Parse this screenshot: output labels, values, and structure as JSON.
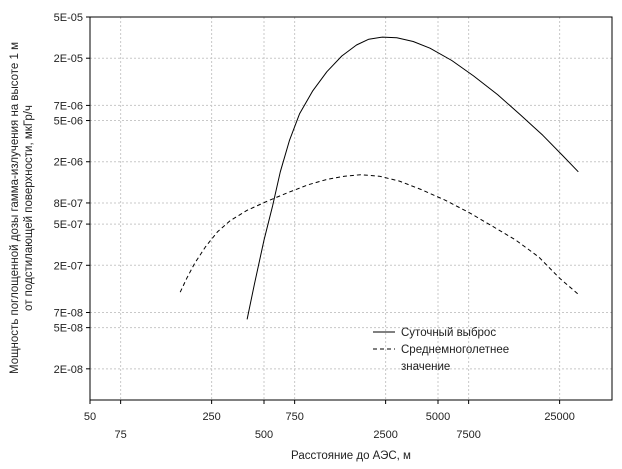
{
  "chart_data": {
    "type": "line",
    "title": "",
    "xlabel": "Расстояние до АЭС, м",
    "ylabel_lines": [
      "Мощность поглощенной дозы гамма-излучения на высоте 1 м",
      "от подстилающей поверхности, мкГр/ч"
    ],
    "x_scale": "log",
    "y_scale": "log",
    "xlim": [
      50,
      50000
    ],
    "ylim": [
      1e-08,
      5e-05
    ],
    "x_ticks": [
      {
        "value": 50,
        "label": "50",
        "row": 1
      },
      {
        "value": 75,
        "label": "75",
        "row": 2
      },
      {
        "value": 250,
        "label": "250",
        "row": 1
      },
      {
        "value": 500,
        "label": "500",
        "row": 2
      },
      {
        "value": 750,
        "label": "750",
        "row": 1
      },
      {
        "value": 2500,
        "label": "2500",
        "row": 2
      },
      {
        "value": 5000,
        "label": "5000",
        "row": 1
      },
      {
        "value": 7500,
        "label": "7500",
        "row": 2
      },
      {
        "value": 25000,
        "label": "25000",
        "row": 1
      }
    ],
    "y_ticks": [
      {
        "value": 5e-05,
        "label": "5E-05"
      },
      {
        "value": 2e-05,
        "label": "2E-05"
      },
      {
        "value": 7e-06,
        "label": "7E-06"
      },
      {
        "value": 5e-06,
        "label": "5E-06"
      },
      {
        "value": 2e-06,
        "label": "2E-06"
      },
      {
        "value": 8e-07,
        "label": "8E-07"
      },
      {
        "value": 5e-07,
        "label": "5E-07"
      },
      {
        "value": 2e-07,
        "label": "2E-07"
      },
      {
        "value": 7e-08,
        "label": "7E-08"
      },
      {
        "value": 5e-08,
        "label": "5E-08"
      },
      {
        "value": 2e-08,
        "label": "2E-08"
      }
    ],
    "grid": true,
    "legend_position": "bottom-center",
    "series": [
      {
        "name": "Суточный выброс",
        "style": "solid",
        "x": [
          400,
          440,
          500,
          560,
          620,
          700,
          800,
          950,
          1150,
          1400,
          1700,
          2000,
          2400,
          2900,
          3600,
          4500,
          6000,
          8000,
          11000,
          15000,
          20000,
          26000,
          32000
        ],
        "y": [
          6e-08,
          1.3e-07,
          3.5e-07,
          7.5e-07,
          1.6e-06,
          3.2e-06,
          5.8e-06,
          9.6e-06,
          1.48e-05,
          2.1e-05,
          2.68e-05,
          3.05e-05,
          3.2e-05,
          3.15e-05,
          2.9e-05,
          2.5e-05,
          1.9e-05,
          1.35e-05,
          8.9e-06,
          5.6e-06,
          3.6e-06,
          2.3e-06,
          1.6e-06
        ]
      },
      {
        "name": "Среднемноголетнее значение",
        "style": "dashed",
        "x": [
          165,
          180,
          200,
          230,
          270,
          320,
          400,
          520,
          680,
          900,
          1150,
          1450,
          1800,
          2300,
          3000,
          4000,
          5500,
          7500,
          10000,
          14000,
          19000,
          25000,
          32000
        ],
        "y": [
          1.1e-07,
          1.5e-07,
          2.1e-07,
          3e-07,
          4.2e-07,
          5.4e-07,
          6.8e-07,
          8.3e-07,
          1e-06,
          1.2e-06,
          1.35e-06,
          1.45e-06,
          1.5e-06,
          1.45e-06,
          1.3e-06,
          1.08e-06,
          8.5e-07,
          6.5e-07,
          4.9e-07,
          3.5e-07,
          2.4e-07,
          1.5e-07,
          1.05e-07
        ]
      }
    ],
    "legend": [
      {
        "label": "Суточный выброс",
        "style": "solid"
      },
      {
        "label_lines": [
          "Среднемноголетнее",
          "значение"
        ],
        "style": "dashed"
      }
    ]
  }
}
